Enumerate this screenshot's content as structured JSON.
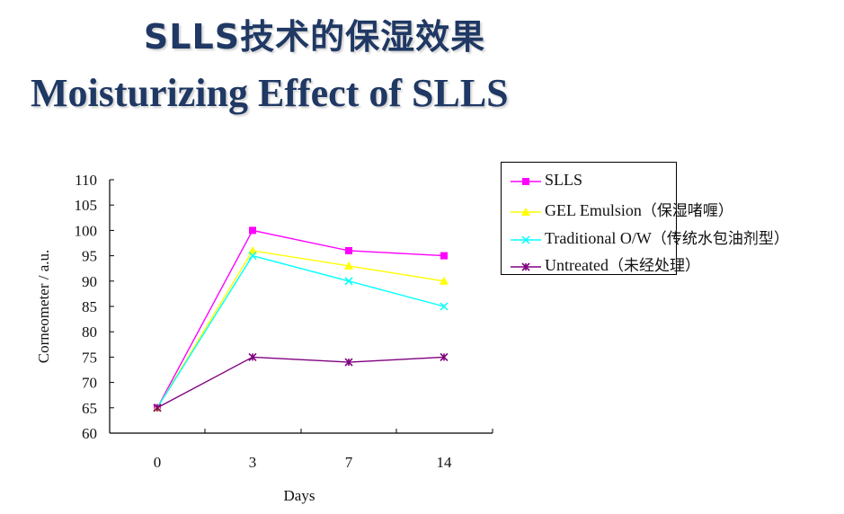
{
  "header": {
    "title_cn": "SLLS技术的保湿效果",
    "title_en": "Moisturizing Effect of SLLS"
  },
  "chart_data": {
    "type": "line",
    "categories": [
      "0",
      "3",
      "7",
      "14"
    ],
    "xlabel": "Days",
    "ylabel": "Corneometer / a.u.",
    "ylim": [
      60,
      110
    ],
    "yticks": [
      60,
      65,
      70,
      75,
      80,
      85,
      90,
      95,
      100,
      105,
      110
    ],
    "grid": false,
    "legend_position": "right",
    "series": [
      {
        "name": "SLLS",
        "name_cn": "",
        "color": "#ff00ff",
        "marker": "square",
        "values": [
          65,
          100,
          96,
          95
        ]
      },
      {
        "name": "GEL Emulsion",
        "name_cn": "（保湿啫喱）",
        "color": "#ffff00",
        "marker": "triangle",
        "values": [
          65,
          96,
          93,
          90
        ]
      },
      {
        "name": "Traditional O/W",
        "name_cn": "（传统水包油剂型）",
        "color": "#00ffff",
        "marker": "x",
        "values": [
          65,
          95,
          90,
          85
        ]
      },
      {
        "name": "Untreated",
        "name_cn": "（未经处理）",
        "color": "#800080",
        "marker": "star",
        "values": [
          65,
          75,
          74,
          75
        ]
      }
    ]
  }
}
